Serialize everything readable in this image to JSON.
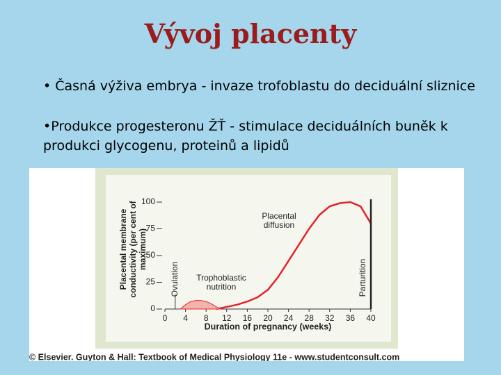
{
  "title": "Vývoj placenty",
  "bullets": [
    "• Časná výživa embrya - invaze trofoblastu do deciduální sliznice",
    "•Produkce progesteronu ŽŤ - stimulace deciduálních buněk k produkci glycogenu, proteinů a lipidů"
  ],
  "chart_data": {
    "type": "line",
    "x_label": "Duration of pregnancy (weeks)",
    "y_label": "Placental membrane conductivity (per cent of maximum)",
    "xlim": [
      0,
      40
    ],
    "xticks": [
      0,
      4,
      8,
      12,
      16,
      20,
      24,
      28,
      32,
      36,
      40
    ],
    "ylim": [
      0,
      100
    ],
    "yticks": [
      0,
      25,
      50,
      75,
      100
    ],
    "series": [
      {
        "name": "Placental diffusion",
        "color": "#e8202a",
        "x": [
          10,
          12,
          14,
          16,
          18,
          20,
          22,
          24,
          26,
          28,
          30,
          32,
          34,
          36,
          38,
          40
        ],
        "values": [
          0,
          2,
          4,
          7,
          11,
          18,
          30,
          45,
          60,
          75,
          88,
          96,
          99,
          100,
          96,
          80
        ]
      },
      {
        "name": "Trophoblastic nutrition",
        "color": "#f2b3aa",
        "x": [
          3,
          4,
          5,
          6,
          7,
          8,
          9,
          10,
          11
        ],
        "values": [
          0,
          4,
          7,
          8,
          8,
          7,
          5,
          2,
          0
        ]
      }
    ],
    "markers": [
      {
        "label": "Ovulation",
        "x": 2
      },
      {
        "label": "Parturition",
        "x": 40
      }
    ],
    "credit": "© Elsevier. Guyton & Hall: Textbook of Medical Physiology 11e - www.studentconsult.com"
  }
}
